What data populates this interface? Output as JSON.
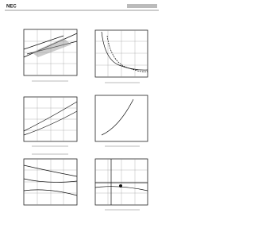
{
  "header": {
    "brand": "NEC"
  }
}
